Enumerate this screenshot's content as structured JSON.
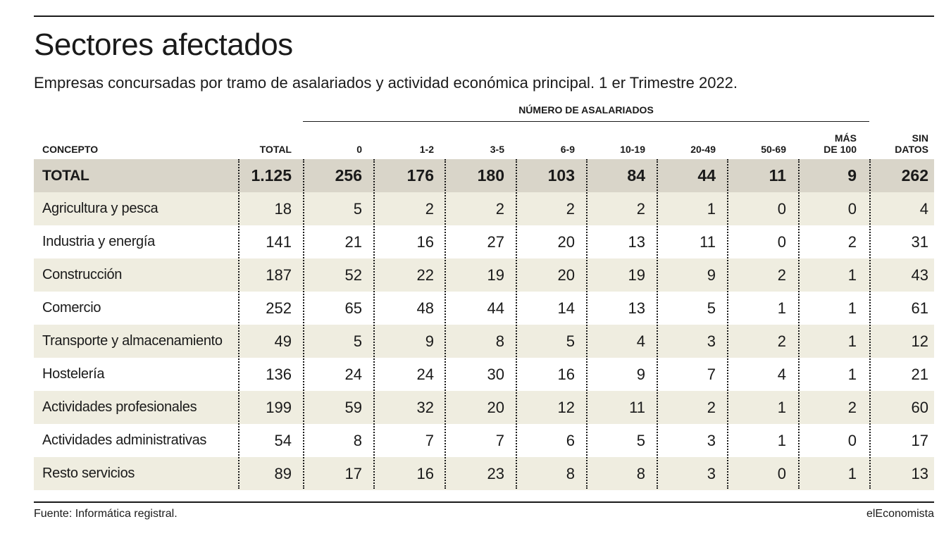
{
  "title": "Sectores afectados",
  "subtitle": "Empresas concursadas por tramo de asalariados y actividad económica principal. 1 er Trimestre 2022.",
  "source": "Fuente: Informática registral.",
  "brand": "elEconomista",
  "colors": {
    "total_row": "#d9d5c9",
    "stripe_row": "#efede0",
    "text": "#1a1a1a"
  },
  "chart_data": {
    "type": "table",
    "title": "Sectores afectados",
    "subtitle": "Empresas concursadas por tramo de asalariados y actividad económica principal. 1 er Trimestre 2022.",
    "group_header": "NÚMERO DE ASALARIADOS",
    "columns": [
      "CONCEPTO",
      "TOTAL",
      "0",
      "1-2",
      "3-5",
      "6-9",
      "10-19",
      "20-49",
      "50-69",
      "MÁS DE 100",
      "SIN DATOS"
    ],
    "column_headers": [
      [
        "CONCEPTO"
      ],
      [
        "TOTAL"
      ],
      [
        "0"
      ],
      [
        "1-2"
      ],
      [
        "3-5"
      ],
      [
        "6-9"
      ],
      [
        "10-19"
      ],
      [
        "20-49"
      ],
      [
        "50-69"
      ],
      [
        "MÁS",
        "DE 100"
      ],
      [
        "SIN",
        "DATOS"
      ]
    ],
    "rows": [
      {
        "concepto": "TOTAL",
        "values": [
          "1.125",
          "256",
          "176",
          "180",
          "103",
          "84",
          "44",
          "11",
          "9",
          "262"
        ]
      },
      {
        "concepto": "Agricultura y pesca",
        "values": [
          "18",
          "5",
          "2",
          "2",
          "2",
          "2",
          "1",
          "0",
          "0",
          "4"
        ]
      },
      {
        "concepto": "Industria y energía",
        "values": [
          "141",
          "21",
          "16",
          "27",
          "20",
          "13",
          "11",
          "0",
          "2",
          "31"
        ]
      },
      {
        "concepto": "Construcción",
        "values": [
          "187",
          "52",
          "22",
          "19",
          "20",
          "19",
          "9",
          "2",
          "1",
          "43"
        ]
      },
      {
        "concepto": "Comercio",
        "values": [
          "252",
          "65",
          "48",
          "44",
          "14",
          "13",
          "5",
          "1",
          "1",
          "61"
        ]
      },
      {
        "concepto": "Transporte y almacenamiento",
        "values": [
          "49",
          "5",
          "9",
          "8",
          "5",
          "4",
          "3",
          "2",
          "1",
          "12"
        ]
      },
      {
        "concepto": "Hostelería",
        "values": [
          "136",
          "24",
          "24",
          "30",
          "16",
          "9",
          "7",
          "4",
          "1",
          "21"
        ]
      },
      {
        "concepto": "Actividades profesionales",
        "values": [
          "199",
          "59",
          "32",
          "20",
          "12",
          "11",
          "2",
          "1",
          "2",
          "60"
        ]
      },
      {
        "concepto": "Actividades administrativas",
        "values": [
          "54",
          "8",
          "7",
          "7",
          "6",
          "5",
          "3",
          "1",
          "0",
          "17"
        ]
      },
      {
        "concepto": "Resto servicios",
        "values": [
          "89",
          "17",
          "16",
          "23",
          "8",
          "8",
          "3",
          "0",
          "1",
          "13"
        ]
      }
    ]
  }
}
